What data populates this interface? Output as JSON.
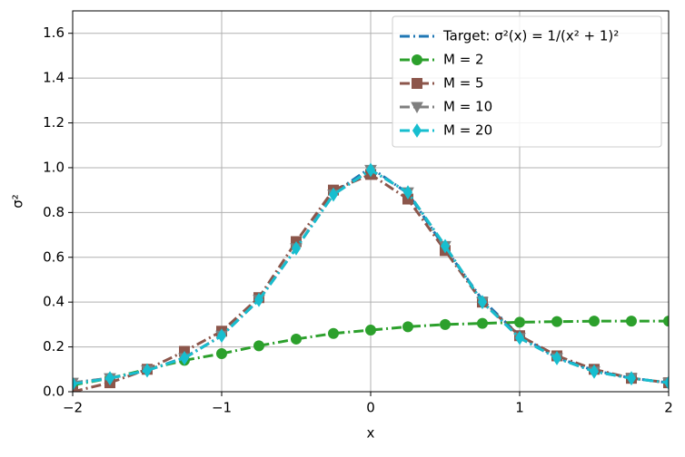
{
  "chart_data": {
    "type": "line",
    "xlabel": "x",
    "ylabel": "σ²",
    "x": [
      -2,
      -1.75,
      -1.5,
      -1.25,
      -1,
      -0.75,
      -0.5,
      -0.25,
      0,
      0.25,
      0.5,
      0.75,
      1,
      1.25,
      1.5,
      1.75,
      2
    ],
    "series": [
      {
        "name": "Target: σ²(x) = 1/(x² + 1)²",
        "color": "#1f77b4",
        "marker": "none",
        "values": [
          0.04,
          0.0606,
          0.0947,
          0.1523,
          0.25,
          0.4096,
          0.64,
          0.8858,
          1.0,
          0.8858,
          0.64,
          0.4096,
          0.25,
          0.1523,
          0.0947,
          0.0606,
          0.04
        ]
      },
      {
        "name": "M = 2",
        "color": "#2ca02c",
        "marker": "circle",
        "values": [
          0.03,
          0.06,
          0.1,
          0.14,
          0.17,
          0.205,
          0.235,
          0.26,
          0.275,
          0.29,
          0.3,
          0.305,
          0.31,
          0.313,
          0.315,
          0.315,
          0.315
        ]
      },
      {
        "name": "M = 5",
        "color": "#8c564b",
        "marker": "square",
        "values": [
          0.0,
          0.04,
          0.1,
          0.18,
          0.27,
          0.42,
          0.67,
          0.9,
          0.97,
          0.86,
          0.63,
          0.4,
          0.25,
          0.16,
          0.1,
          0.06,
          0.04
        ]
      },
      {
        "name": "M = 10",
        "color": "#7f7f7f",
        "marker": "triangle",
        "values": [
          0.04,
          0.06,
          0.095,
          0.15,
          0.25,
          0.41,
          0.64,
          0.88,
          0.99,
          0.89,
          0.65,
          0.4,
          0.24,
          0.15,
          0.09,
          0.06,
          0.04
        ]
      },
      {
        "name": "M = 20",
        "color": "#17becf",
        "marker": "diamond",
        "values": [
          0.035,
          0.06,
          0.095,
          0.15,
          0.25,
          0.41,
          0.64,
          0.88,
          0.99,
          0.89,
          0.65,
          0.4,
          0.24,
          0.15,
          0.09,
          0.06,
          0.04
        ]
      }
    ],
    "xlim": [
      -2,
      2
    ],
    "xticks": [
      {
        "value": -2,
        "label": "−2"
      },
      {
        "value": -1,
        "label": "−1"
      },
      0,
      1,
      2
    ],
    "ylim": [
      0,
      1.7
    ],
    "yticks": [
      {
        "value": 0,
        "label": "0.0"
      },
      0.2,
      0.4,
      0.6,
      0.8,
      {
        "value": 1,
        "label": "1.0"
      },
      1.2,
      1.4,
      1.6
    ],
    "grid": true,
    "legend": "upper right"
  }
}
